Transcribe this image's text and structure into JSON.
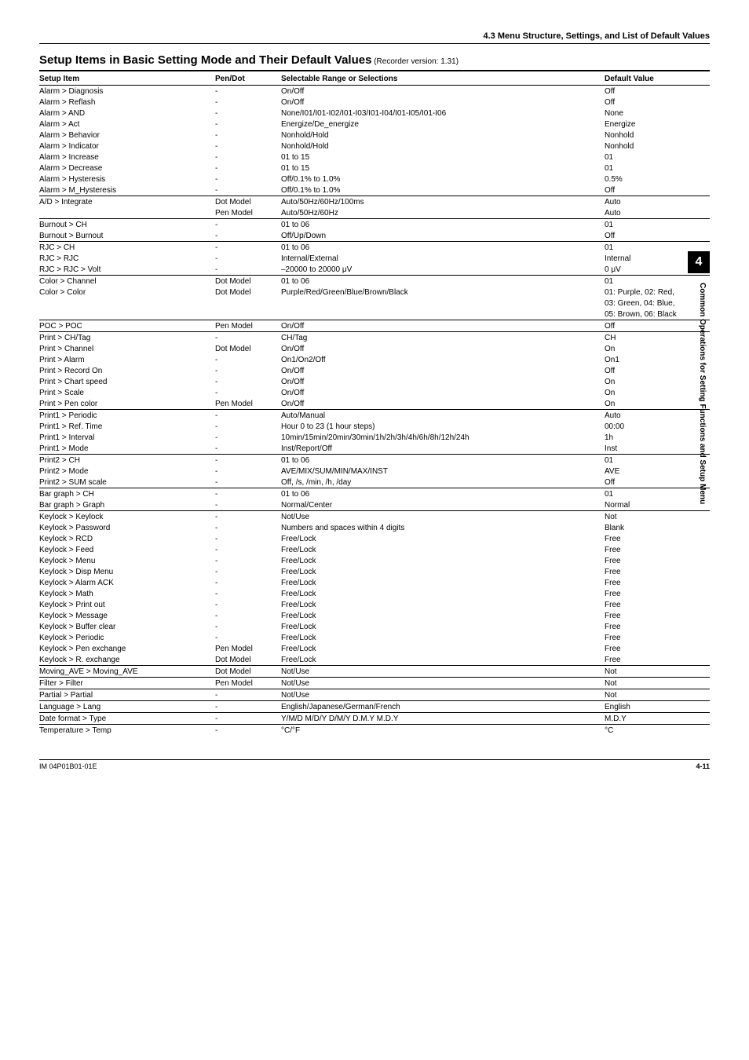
{
  "header": {
    "section": "4.3  Menu Structure, Settings, and List of Default Values"
  },
  "title": {
    "main": "Setup Items in Basic Setting Mode and Their Default Values",
    "sub": "(Recorder version: 1.31)"
  },
  "side": {
    "tab": "4",
    "label": "Common Operations for Setting Functions and Setup Menu"
  },
  "columns": {
    "setup": "Setup Item",
    "pendot": "Pen/Dot",
    "range": "Selectable Range or Selections",
    "default": "Default Value"
  },
  "rows": [
    {
      "s": "Alarm > Diagnosis",
      "p": "-",
      "r": "On/Off",
      "d": "Off",
      "sep": false
    },
    {
      "s": "Alarm > Reflash",
      "p": "-",
      "r": "On/Off",
      "d": "Off",
      "sep": false
    },
    {
      "s": "Alarm > AND",
      "p": "-",
      "r": "None/I01/I01-I02/I01-I03/I01-I04/I01-I05/I01-I06",
      "d": "None",
      "sep": false
    },
    {
      "s": "Alarm > Act",
      "p": "-",
      "r": "Energize/De_energize",
      "d": "Energize",
      "sep": false
    },
    {
      "s": "Alarm > Behavior",
      "p": "-",
      "r": "Nonhold/Hold",
      "d": "Nonhold",
      "sep": false
    },
    {
      "s": "Alarm > Indicator",
      "p": "-",
      "r": "Nonhold/Hold",
      "d": "Nonhold",
      "sep": false
    },
    {
      "s": "Alarm > Increase",
      "p": "-",
      "r": "01 to 15",
      "d": "01",
      "sep": false
    },
    {
      "s": "Alarm > Decrease",
      "p": "-",
      "r": "01 to 15",
      "d": "01",
      "sep": false
    },
    {
      "s": "Alarm > Hysteresis",
      "p": "-",
      "r": "Off/0.1% to 1.0%",
      "d": "0.5%",
      "sep": false
    },
    {
      "s": "Alarm > M_Hysteresis",
      "p": "-",
      "r": "Off/0.1% to 1.0%",
      "d": "Off",
      "sep": false
    },
    {
      "s": "A/D > Integrate",
      "p": "Dot Model",
      "r": "Auto/50Hz/60Hz/100ms",
      "d": "Auto",
      "sep": true
    },
    {
      "s": "",
      "p": "Pen Model",
      "r": "Auto/50Hz/60Hz",
      "d": "Auto",
      "sep": false
    },
    {
      "s": "Burnout > CH",
      "p": "-",
      "r": "01 to 06",
      "d": "01",
      "sep": true
    },
    {
      "s": "Burnout > Burnout",
      "p": "-",
      "r": "Off/Up/Down",
      "d": "Off",
      "sep": false
    },
    {
      "s": "RJC > CH",
      "p": "-",
      "r": "01 to 06",
      "d": "01",
      "sep": true
    },
    {
      "s": "RJC > RJC",
      "p": "-",
      "r": "Internal/External",
      "d": "Internal",
      "sep": false
    },
    {
      "s": "RJC > RJC > Volt",
      "p": "-",
      "r": "–20000 to 20000 μV",
      "d": "0 μV",
      "sep": false
    },
    {
      "s": "Color > Channel",
      "p": "Dot Model",
      "r": "01 to 06",
      "d": "01",
      "sep": true
    },
    {
      "s": "Color > Color",
      "p": "Dot Model",
      "r": "Purple/Red/Green/Blue/Brown/Black",
      "d": "01: Purple, 02: Red,",
      "sep": false
    },
    {
      "s": "",
      "p": "",
      "r": "",
      "d": "03: Green, 04: Blue,",
      "sep": false
    },
    {
      "s": "",
      "p": "",
      "r": "",
      "d": "05: Brown, 06: Black",
      "sep": false
    },
    {
      "s": "POC > POC",
      "p": "Pen Model",
      "r": "On/Off",
      "d": "Off",
      "sep": true
    },
    {
      "s": "Print > CH/Tag",
      "p": "-",
      "r": "CH/Tag",
      "d": "CH",
      "sep": true
    },
    {
      "s": "Print > Channel",
      "p": "Dot Model",
      "r": "On/Off",
      "d": "On",
      "sep": false
    },
    {
      "s": "Print > Alarm",
      "p": "-",
      "r": "On1/On2/Off",
      "d": "On1",
      "sep": false
    },
    {
      "s": "Print > Record On",
      "p": "-",
      "r": "On/Off",
      "d": "Off",
      "sep": false
    },
    {
      "s": "Print > Chart speed",
      "p": "-",
      "r": "On/Off",
      "d": "On",
      "sep": false
    },
    {
      "s": "Print > Scale",
      "p": "-",
      "r": "On/Off",
      "d": "On",
      "sep": false
    },
    {
      "s": "Print > Pen color",
      "p": "Pen Model",
      "r": "On/Off",
      "d": "On",
      "sep": false
    },
    {
      "s": "Print1 > Periodic",
      "p": "-",
      "r": "Auto/Manual",
      "d": "Auto",
      "sep": true
    },
    {
      "s": "Print1 > Ref. Time",
      "p": "-",
      "r": "Hour 0 to 23 (1 hour steps)",
      "d": "00:00",
      "sep": false
    },
    {
      "s": "Print1 > Interval",
      "p": "-",
      "r": "10min/15min/20min/30min/1h/2h/3h/4h/6h/8h/12h/24h",
      "d": "1h",
      "sep": false
    },
    {
      "s": "Print1 > Mode",
      "p": "-",
      "r": "Inst/Report/Off",
      "d": "Inst",
      "sep": false
    },
    {
      "s": "Print2 > CH",
      "p": "-",
      "r": "01 to 06",
      "d": "01",
      "sep": true
    },
    {
      "s": "Print2 > Mode",
      "p": "-",
      "r": "AVE/MIX/SUM/MIN/MAX/INST",
      "d": "AVE",
      "sep": false
    },
    {
      "s": "Print2 > SUM scale",
      "p": "-",
      "r": "Off, /s, /min, /h, /day",
      "d": "Off",
      "sep": false
    },
    {
      "s": "Bar graph > CH",
      "p": "-",
      "r": "01 to 06",
      "d": "01",
      "sep": true
    },
    {
      "s": "Bar graph > Graph",
      "p": "-",
      "r": "Normal/Center",
      "d": "Normal",
      "sep": false
    },
    {
      "s": "Keylock > Keylock",
      "p": "-",
      "r": "Not/Use",
      "d": "Not",
      "sep": true
    },
    {
      "s": "Keylock > Password",
      "p": "-",
      "r": "Numbers and spaces within 4 digits",
      "d": "Blank",
      "sep": false
    },
    {
      "s": "Keylock > RCD",
      "p": "-",
      "r": "Free/Lock",
      "d": "Free",
      "sep": false
    },
    {
      "s": "Keylock > Feed",
      "p": "-",
      "r": "Free/Lock",
      "d": "Free",
      "sep": false
    },
    {
      "s": "Keylock > Menu",
      "p": "-",
      "r": "Free/Lock",
      "d": "Free",
      "sep": false
    },
    {
      "s": "Keylock > Disp Menu",
      "p": "-",
      "r": "Free/Lock",
      "d": "Free",
      "sep": false
    },
    {
      "s": "Keylock > Alarm ACK",
      "p": "-",
      "r": "Free/Lock",
      "d": "Free",
      "sep": false
    },
    {
      "s": "Keylock > Math",
      "p": "-",
      "r": "Free/Lock",
      "d": "Free",
      "sep": false
    },
    {
      "s": "Keylock > Print out",
      "p": "-",
      "r": "Free/Lock",
      "d": "Free",
      "sep": false
    },
    {
      "s": "Keylock > Message",
      "p": "-",
      "r": "Free/Lock",
      "d": "Free",
      "sep": false
    },
    {
      "s": "Keylock > Buffer clear",
      "p": "-",
      "r": "Free/Lock",
      "d": "Free",
      "sep": false
    },
    {
      "s": "Keylock > Periodic",
      "p": "-",
      "r": "Free/Lock",
      "d": "Free",
      "sep": false
    },
    {
      "s": "Keylock > Pen exchange",
      "p": "Pen Model",
      "r": "Free/Lock",
      "d": "Free",
      "sep": false
    },
    {
      "s": "Keylock > R. exchange",
      "p": "Dot Model",
      "r": "Free/Lock",
      "d": "Free",
      "sep": false
    },
    {
      "s": "Moving_AVE > Moving_AVE",
      "p": "Dot Model",
      "r": "Not/Use",
      "d": "Not",
      "sep": true
    },
    {
      "s": "Filter > Filter",
      "p": "Pen Model",
      "r": "Not/Use",
      "d": "Not",
      "sep": true
    },
    {
      "s": "Partial > Partial",
      "p": "-",
      "r": "Not/Use",
      "d": "Not",
      "sep": true
    },
    {
      "s": "Language > Lang",
      "p": "-",
      "r": "English/Japanese/German/French",
      "d": "English",
      "sep": true
    },
    {
      "s": "Date format > Type",
      "p": "-",
      "r": "Y/M/D  M/D/Y  D/M/Y  D.M.Y  M.D.Y",
      "d": "M.D.Y",
      "sep": true
    },
    {
      "s": "Temperature > Temp",
      "p": "-",
      "r": "°C/°F",
      "d": "°C",
      "sep": true
    }
  ],
  "footer": {
    "left": "IM 04P01B01-01E",
    "right": "4-11"
  }
}
